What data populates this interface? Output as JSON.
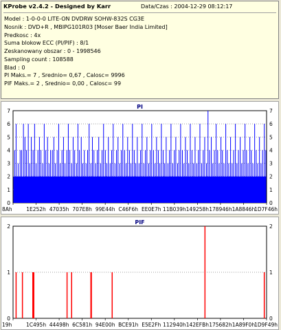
{
  "info": {
    "title": "KProbe v2.4.2 - Designed by Karr",
    "date": "Data/Czas : 2004-12-29 08:12:17",
    "lines": [
      "Model : 1-0-0-0 LITE-ON DVDRW SOHW-832S  CG3E",
      "Nosnik : DVD+R , MBIPG101R03 [Moser Baer India Limited]",
      "Predkosc : 4x",
      "Suma blokow ECC (PI/PIF) : 8/1",
      "Zeskanowany obszar : 0 - 1998546",
      "Sampling count : 108588",
      "Blad : 0",
      "PI Maks.= 7 , Srednio= 0,67 , Calosc= 9996",
      "PIF Maks.= 2 , Srednio= 0,00 , Calosc= 99"
    ]
  },
  "colors": {
    "pi": "#0000ff",
    "pif": "#ff0000",
    "title": "#000080",
    "grid": "#7f7f7f"
  },
  "chart_data": [
    {
      "type": "bar",
      "title": "PI",
      "ylim": [
        0,
        7
      ],
      "yticks": [
        0,
        1,
        2,
        3,
        4,
        5,
        6,
        7
      ],
      "xticks": [
        "8Ah",
        "1E252h",
        "47035h",
        "707E8h",
        "99E44h",
        "C46F6h",
        "EE0E7h",
        "11B039h",
        "149258h",
        "178946h",
        "1A8846h",
        "1D7F46h"
      ],
      "baseline": 2,
      "spikes": [
        [
          0.006,
          4
        ],
        [
          0.012,
          6
        ],
        [
          0.02,
          3
        ],
        [
          0.028,
          4
        ],
        [
          0.034,
          4
        ],
        [
          0.041,
          6
        ],
        [
          0.047,
          5
        ],
        [
          0.053,
          4
        ],
        [
          0.06,
          6
        ],
        [
          0.066,
          3
        ],
        [
          0.072,
          5
        ],
        [
          0.079,
          4
        ],
        [
          0.085,
          6
        ],
        [
          0.091,
          3
        ],
        [
          0.098,
          4
        ],
        [
          0.104,
          5
        ],
        [
          0.11,
          4
        ],
        [
          0.117,
          3
        ],
        [
          0.123,
          6
        ],
        [
          0.129,
          4
        ],
        [
          0.136,
          5
        ],
        [
          0.142,
          3
        ],
        [
          0.148,
          4
        ],
        [
          0.155,
          4
        ],
        [
          0.161,
          5
        ],
        [
          0.167,
          3
        ],
        [
          0.174,
          4
        ],
        [
          0.18,
          6
        ],
        [
          0.186,
          3
        ],
        [
          0.193,
          4
        ],
        [
          0.199,
          5
        ],
        [
          0.205,
          3
        ],
        [
          0.212,
          4
        ],
        [
          0.218,
          6
        ],
        [
          0.224,
          4
        ],
        [
          0.231,
          3
        ],
        [
          0.237,
          5
        ],
        [
          0.243,
          4
        ],
        [
          0.25,
          3
        ],
        [
          0.256,
          6
        ],
        [
          0.262,
          4
        ],
        [
          0.269,
          5
        ],
        [
          0.275,
          3
        ],
        [
          0.281,
          4
        ],
        [
          0.288,
          3
        ],
        [
          0.294,
          4
        ],
        [
          0.3,
          6
        ],
        [
          0.307,
          3
        ],
        [
          0.313,
          5
        ],
        [
          0.319,
          4
        ],
        [
          0.326,
          3
        ],
        [
          0.332,
          4
        ],
        [
          0.338,
          5
        ],
        [
          0.345,
          3
        ],
        [
          0.351,
          4
        ],
        [
          0.357,
          6
        ],
        [
          0.364,
          4
        ],
        [
          0.37,
          3
        ],
        [
          0.376,
          5
        ],
        [
          0.383,
          3
        ],
        [
          0.389,
          4
        ],
        [
          0.395,
          6
        ],
        [
          0.402,
          3
        ],
        [
          0.408,
          4
        ],
        [
          0.414,
          5
        ],
        [
          0.421,
          3
        ],
        [
          0.427,
          4
        ],
        [
          0.433,
          6
        ],
        [
          0.44,
          4
        ],
        [
          0.446,
          3
        ],
        [
          0.452,
          5
        ],
        [
          0.459,
          4
        ],
        [
          0.465,
          3
        ],
        [
          0.471,
          6
        ],
        [
          0.478,
          4
        ],
        [
          0.484,
          3
        ],
        [
          0.49,
          5
        ],
        [
          0.497,
          3
        ],
        [
          0.503,
          4
        ],
        [
          0.509,
          6
        ],
        [
          0.516,
          3
        ],
        [
          0.522,
          4
        ],
        [
          0.528,
          5
        ],
        [
          0.535,
          3
        ],
        [
          0.541,
          4
        ],
        [
          0.547,
          6
        ],
        [
          0.554,
          4
        ],
        [
          0.56,
          3
        ],
        [
          0.566,
          5
        ],
        [
          0.573,
          4
        ],
        [
          0.579,
          3
        ],
        [
          0.585,
          6
        ],
        [
          0.592,
          4
        ],
        [
          0.598,
          3
        ],
        [
          0.604,
          5
        ],
        [
          0.611,
          3
        ],
        [
          0.617,
          4
        ],
        [
          0.623,
          6
        ],
        [
          0.63,
          3
        ],
        [
          0.636,
          4
        ],
        [
          0.642,
          5
        ],
        [
          0.649,
          3
        ],
        [
          0.655,
          4
        ],
        [
          0.661,
          6
        ],
        [
          0.668,
          4
        ],
        [
          0.674,
          3
        ],
        [
          0.68,
          5
        ],
        [
          0.687,
          4
        ],
        [
          0.693,
          3
        ],
        [
          0.699,
          6
        ],
        [
          0.706,
          4
        ],
        [
          0.712,
          3
        ],
        [
          0.718,
          5
        ],
        [
          0.725,
          3
        ],
        [
          0.731,
          4
        ],
        [
          0.737,
          6
        ],
        [
          0.744,
          3
        ],
        [
          0.75,
          4
        ],
        [
          0.756,
          5
        ],
        [
          0.763,
          3
        ],
        [
          0.769,
          7
        ],
        [
          0.775,
          4
        ],
        [
          0.782,
          5
        ],
        [
          0.788,
          3
        ],
        [
          0.794,
          4
        ],
        [
          0.801,
          6
        ],
        [
          0.807,
          4
        ],
        [
          0.813,
          3
        ],
        [
          0.82,
          5
        ],
        [
          0.826,
          4
        ],
        [
          0.832,
          3
        ],
        [
          0.839,
          6
        ],
        [
          0.845,
          4
        ],
        [
          0.851,
          3
        ],
        [
          0.858,
          5
        ],
        [
          0.864,
          3
        ],
        [
          0.87,
          4
        ],
        [
          0.877,
          6
        ],
        [
          0.883,
          3
        ],
        [
          0.889,
          4
        ],
        [
          0.896,
          5
        ],
        [
          0.902,
          3
        ],
        [
          0.908,
          4
        ],
        [
          0.915,
          6
        ],
        [
          0.921,
          4
        ],
        [
          0.927,
          3
        ],
        [
          0.934,
          5
        ],
        [
          0.94,
          4
        ],
        [
          0.946,
          3
        ],
        [
          0.953,
          6
        ],
        [
          0.959,
          4
        ],
        [
          0.965,
          3
        ],
        [
          0.972,
          5
        ],
        [
          0.978,
          3
        ],
        [
          0.984,
          4
        ],
        [
          0.991,
          6
        ],
        [
          0.997,
          4
        ]
      ]
    },
    {
      "type": "bar",
      "title": "PIF",
      "ylim": [
        0,
        2
      ],
      "yticks": [
        0,
        1,
        2
      ],
      "xticks": [
        "19h",
        "1C495h",
        "44498h",
        "6C581h",
        "94E00h",
        "BCE91h",
        "E5E2Fh",
        "112940h",
        "142EFBh",
        "175682h",
        "1A89F0h",
        "1D9F49h"
      ],
      "spikes": [
        [
          0.012,
          1
        ],
        [
          0.037,
          1
        ],
        [
          0.078,
          1
        ],
        [
          0.082,
          1
        ],
        [
          0.213,
          1
        ],
        [
          0.231,
          1
        ],
        [
          0.307,
          1
        ],
        [
          0.309,
          1
        ],
        [
          0.391,
          1
        ],
        [
          0.757,
          2
        ],
        [
          0.991,
          1
        ]
      ]
    }
  ]
}
